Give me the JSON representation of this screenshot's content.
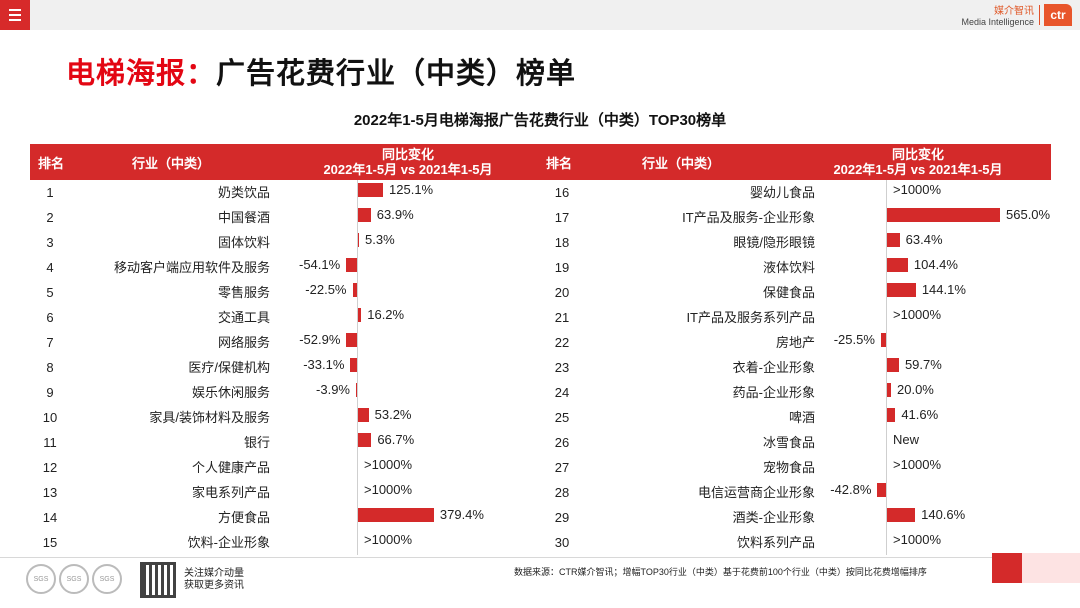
{
  "brand": {
    "cn": "媒介智讯",
    "en": "Media Intelligence",
    "logo": "ctr"
  },
  "title": {
    "red": "电梯海报：",
    "black": "广告花费行业（中类）榜单"
  },
  "subtitle": "2022年1-5月电梯海报广告花费行业（中类）TOP30榜单",
  "header": {
    "rank": "排名",
    "industry": "行业（中类）",
    "change_line1": "同比变化",
    "change_line2": "2022年1-5月 vs 2021年1-5月"
  },
  "left_rows": [
    {
      "rank": "1",
      "industry": "奶类饮品",
      "label": "125.1%",
      "value": 125.1
    },
    {
      "rank": "2",
      "industry": "中国餐酒",
      "label": "63.9%",
      "value": 63.9
    },
    {
      "rank": "3",
      "industry": "固体饮料",
      "label": "5.3%",
      "value": 5.3
    },
    {
      "rank": "4",
      "industry": "移动客户端应用软件及服务",
      "label": "-54.1%",
      "value": -54.1
    },
    {
      "rank": "5",
      "industry": "零售服务",
      "label": "-22.5%",
      "value": -22.5
    },
    {
      "rank": "6",
      "industry": "交通工具",
      "label": "16.2%",
      "value": 16.2
    },
    {
      "rank": "7",
      "industry": "网络服务",
      "label": "-52.9%",
      "value": -52.9
    },
    {
      "rank": "8",
      "industry": "医疗/保健机构",
      "label": "-33.1%",
      "value": -33.1
    },
    {
      "rank": "9",
      "industry": "娱乐休闲服务",
      "label": "-3.9%",
      "value": -3.9
    },
    {
      "rank": "10",
      "industry": "家具/装饰材料及服务",
      "label": "53.2%",
      "value": 53.2
    },
    {
      "rank": "11",
      "industry": "银行",
      "label": "66.7%",
      "value": 66.7
    },
    {
      "rank": "12",
      "industry": "个人健康产品",
      "label": ">1000%",
      "value": null
    },
    {
      "rank": "13",
      "industry": "家电系列产品",
      "label": ">1000%",
      "value": null
    },
    {
      "rank": "14",
      "industry": "方便食品",
      "label": "379.4%",
      "value": 379.4
    },
    {
      "rank": "15",
      "industry": "饮料-企业形象",
      "label": ">1000%",
      "value": null
    }
  ],
  "right_rows": [
    {
      "rank": "16",
      "industry": "婴幼儿食品",
      "label": ">1000%",
      "value": null
    },
    {
      "rank": "17",
      "industry": "IT产品及服务-企业形象",
      "label": "565.0%",
      "value": 565.0
    },
    {
      "rank": "18",
      "industry": "眼镜/隐形眼镜",
      "label": "63.4%",
      "value": 63.4
    },
    {
      "rank": "19",
      "industry": "液体饮料",
      "label": "104.4%",
      "value": 104.4
    },
    {
      "rank": "20",
      "industry": "保健食品",
      "label": "144.1%",
      "value": 144.1
    },
    {
      "rank": "21",
      "industry": "IT产品及服务系列产品",
      "label": ">1000%",
      "value": null
    },
    {
      "rank": "22",
      "industry": "房地产",
      "label": "-25.5%",
      "value": -25.5
    },
    {
      "rank": "23",
      "industry": "衣着-企业形象",
      "label": "59.7%",
      "value": 59.7
    },
    {
      "rank": "24",
      "industry": "药品-企业形象",
      "label": "20.0%",
      "value": 20.0
    },
    {
      "rank": "25",
      "industry": "啤酒",
      "label": "41.6%",
      "value": 41.6
    },
    {
      "rank": "26",
      "industry": "冰雪食品",
      "label": "New",
      "value": null
    },
    {
      "rank": "27",
      "industry": "宠物食品",
      "label": ">1000%",
      "value": null
    },
    {
      "rank": "28",
      "industry": "电信运营商企业形象",
      "label": "-42.8%",
      "value": -42.8
    },
    {
      "rank": "29",
      "industry": "酒类-企业形象",
      "label": "140.6%",
      "value": 140.6
    },
    {
      "rank": "30",
      "industry": "饮料系列产品",
      "label": ">1000%",
      "value": null
    }
  ],
  "footer": {
    "follow_line1": "关注媒介动量",
    "follow_line2": "获取更多资讯",
    "source": "数据来源：CTR媒介智讯；增幅TOP30行业（中类）基于花费前100个行业（中类）按同比花费增幅排序",
    "badge_text": "SGS"
  },
  "colors": {
    "accent": "#d42a2a",
    "title_red": "#e30613"
  }
}
